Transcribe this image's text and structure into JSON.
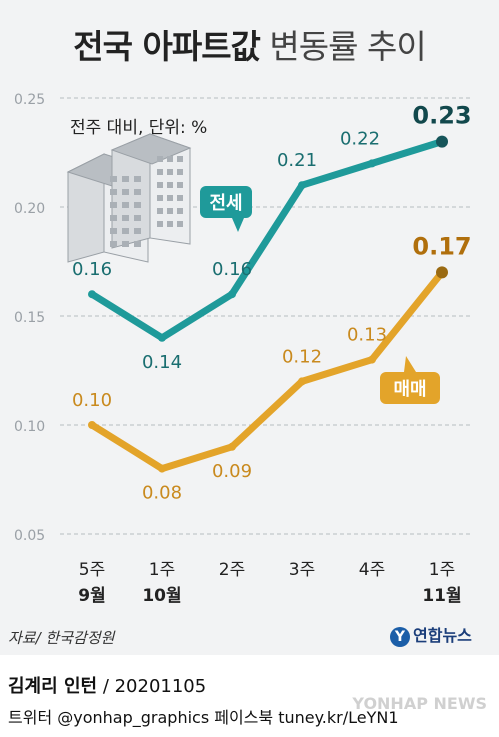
{
  "title": {
    "bold": "전국 아파트값",
    "light": "변동률 추이"
  },
  "unit_label": "전주 대비, 단위: %",
  "source": "자료/ 한국감정원",
  "logo": {
    "mark": "Y",
    "text": "연합뉴스"
  },
  "credit": {
    "author": "김계리 인턴",
    "date": "/ 20201105"
  },
  "social": "트위터 @yonhap_graphics  페이스북 tuney.kr/LeYN1",
  "watermark": "YONHAP NEWS",
  "colors": {
    "jeonse": "#1f9a9a",
    "maemae": "#e3a42a",
    "grid": "#b7bcc1",
    "axis_text": "#9aa0a6"
  },
  "chart_data": {
    "type": "line",
    "categories": [
      "5주 9월",
      "1주 10월",
      "2주",
      "3주",
      "4주",
      "1주 11월"
    ],
    "category_lines": [
      [
        "5주",
        "9월"
      ],
      [
        "1주",
        "10월"
      ],
      [
        "2주",
        ""
      ],
      [
        "3주",
        ""
      ],
      [
        "4주",
        ""
      ],
      [
        "1주",
        "11월"
      ]
    ],
    "series": [
      {
        "name": "전세",
        "values": [
          0.16,
          0.14,
          0.16,
          0.21,
          0.22,
          0.23
        ],
        "labels": [
          "0.16",
          "0.14",
          "0.16",
          "0.21",
          "0.22",
          "0.23"
        ],
        "color": "#1f9a9a"
      },
      {
        "name": "매매",
        "values": [
          0.1,
          0.08,
          0.09,
          0.12,
          0.13,
          0.17
        ],
        "labels": [
          "0.10",
          "0.08",
          "0.09",
          "0.12",
          "0.13",
          "0.17"
        ],
        "color": "#e3a42a"
      }
    ],
    "yticks": [
      "0.25",
      "0.20",
      "0.15",
      "0.10",
      "0.05"
    ],
    "ylim": [
      0.05,
      0.25
    ],
    "grid": true,
    "legend": "callouts on lines"
  }
}
